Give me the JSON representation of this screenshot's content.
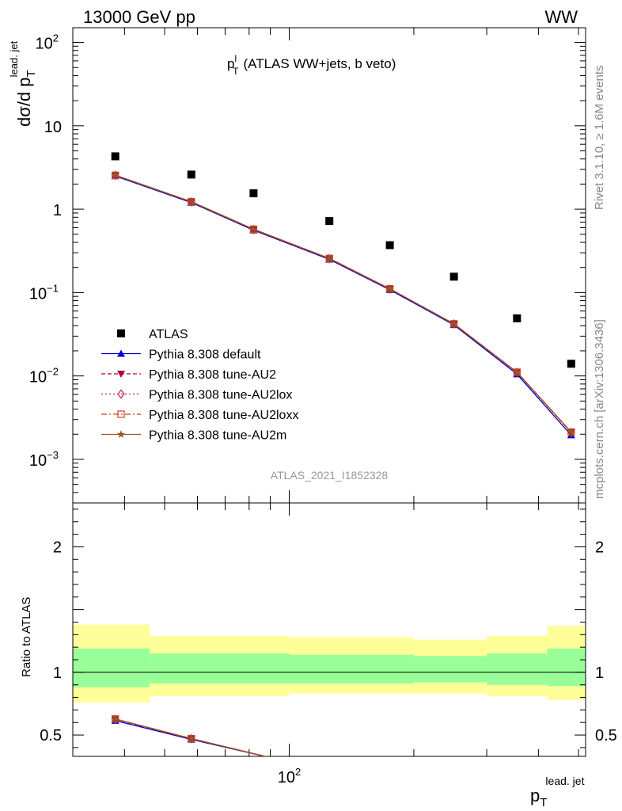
{
  "header": {
    "left": "13000 GeV pp",
    "right": "WW"
  },
  "side": {
    "rivet": "Rivet 3.1.10, ≥ 1.6M events",
    "mcplots": "mcplots.cern.ch [arXiv:1306.3436]"
  },
  "analysis_id": "ATLAS_2021_I1852328",
  "chart_data": [
    {
      "type": "scatter",
      "title": "p_T^l (ATLAS WW+jets, b veto)",
      "title_main": "p",
      "title_sup": "l",
      "title_sub": "T",
      "title_rest": "(ATLAS WW+jets, b veto)",
      "ylabel": "dσ/d p_T^lead. jet",
      "ylabel_main": "dσ/d p",
      "ylabel_sub": "T",
      "ylabel_sup": "lead. jet",
      "yscale": "log",
      "ylim": [
        0.0003,
        150
      ],
      "xscale": "log",
      "xlim": [
        30,
        520
      ],
      "x_tick_labels": [
        "10",
        "2"
      ],
      "y_tick_labels": [
        {
          "value": 100,
          "base": "10",
          "exp": "2"
        },
        {
          "value": 10,
          "base": "10",
          "exp": ""
        },
        {
          "value": 1,
          "base": "1",
          "exp": ""
        },
        {
          "value": 0.1,
          "base": "10",
          "exp": "−1"
        },
        {
          "value": 0.01,
          "base": "10",
          "exp": "−2"
        },
        {
          "value": 0.001,
          "base": "10",
          "exp": "−3"
        }
      ],
      "x": [
        38,
        58,
        82,
        125,
        175,
        250,
        355,
        480
      ],
      "series": [
        {
          "name": "ATLAS",
          "color": "#000000",
          "marker": "square",
          "line": "none",
          "values": [
            4.3,
            2.6,
            1.55,
            0.72,
            0.37,
            0.155,
            0.049,
            0.014
          ]
        },
        {
          "name": "Pythia 8.308 default",
          "color": "#0000cc",
          "marker": "triangle-up",
          "line": "solid",
          "values": [
            2.5,
            1.2,
            0.56,
            0.25,
            0.108,
            0.041,
            0.0105,
            0.00195
          ]
        },
        {
          "name": "Pythia 8.308 tune-AU2",
          "color": "#aa0044",
          "marker": "triangle-down",
          "line": "dashed",
          "values": [
            2.55,
            1.22,
            0.57,
            0.255,
            0.11,
            0.042,
            0.011,
            0.0021
          ]
        },
        {
          "name": "Pythia 8.308 tune-AU2lox",
          "color": "#bb2255",
          "marker": "diamond-open",
          "line": "dotted",
          "values": [
            2.55,
            1.22,
            0.57,
            0.255,
            0.11,
            0.042,
            0.011,
            0.0021
          ]
        },
        {
          "name": "Pythia 8.308 tune-AU2loxx",
          "color": "#cc4422",
          "marker": "square-open",
          "line": "dashdot",
          "values": [
            2.55,
            1.23,
            0.575,
            0.257,
            0.111,
            0.0422,
            0.0111,
            0.00212
          ]
        },
        {
          "name": "Pythia 8.308 tune-AU2m",
          "color": "#995522",
          "marker": "star",
          "line": "solid",
          "values": [
            2.56,
            1.23,
            0.575,
            0.257,
            0.111,
            0.0422,
            0.0111,
            0.00213
          ]
        }
      ]
    },
    {
      "type": "line",
      "ylabel": "Ratio to ATLAS",
      "xlabel": "p_T^lead. jet",
      "xlabel_main": "p",
      "xlabel_sub": "T",
      "xlabel_sup": "lead. jet",
      "xscale": "log",
      "xlim": [
        30,
        520
      ],
      "ylim": [
        0.33,
        2.35
      ],
      "y_tick_labels": [
        "2",
        "1",
        "0.5"
      ],
      "reference": 1,
      "bins": [
        {
          "lo": 30,
          "hi": 46,
          "yellow": [
            0.76,
            1.38
          ],
          "green": [
            0.88,
            1.19
          ]
        },
        {
          "lo": 46,
          "hi": 100,
          "yellow": [
            0.81,
            1.29
          ],
          "green": [
            0.91,
            1.15
          ]
        },
        {
          "lo": 100,
          "hi": 200,
          "yellow": [
            0.83,
            1.28
          ],
          "green": [
            0.91,
            1.14
          ]
        },
        {
          "lo": 200,
          "hi": 300,
          "yellow": [
            0.83,
            1.26
          ],
          "green": [
            0.92,
            1.13
          ]
        },
        {
          "lo": 300,
          "hi": 420,
          "yellow": [
            0.81,
            1.29
          ],
          "green": [
            0.9,
            1.15
          ]
        },
        {
          "lo": 420,
          "hi": 520,
          "yellow": [
            0.78,
            1.37
          ],
          "green": [
            0.89,
            1.19
          ]
        }
      ],
      "x": [
        38,
        58,
        90
      ],
      "series": [
        {
          "name": "Pythia 8.308 default",
          "color": "#0000cc",
          "values": [
            0.615,
            0.465,
            0.32
          ]
        },
        {
          "name": "Pythia 8.308 tune-AU2",
          "color": "#aa0044",
          "values": [
            0.625,
            0.47,
            0.32
          ]
        },
        {
          "name": "Pythia 8.308 tune-AU2lox",
          "color": "#bb2255",
          "values": [
            0.625,
            0.47,
            0.32
          ]
        },
        {
          "name": "Pythia 8.308 tune-AU2loxx",
          "color": "#cc4422",
          "values": [
            0.628,
            0.472,
            0.32
          ]
        },
        {
          "name": "Pythia 8.308 tune-AU2m",
          "color": "#995522",
          "values": [
            0.628,
            0.472,
            0.32
          ]
        }
      ]
    }
  ]
}
